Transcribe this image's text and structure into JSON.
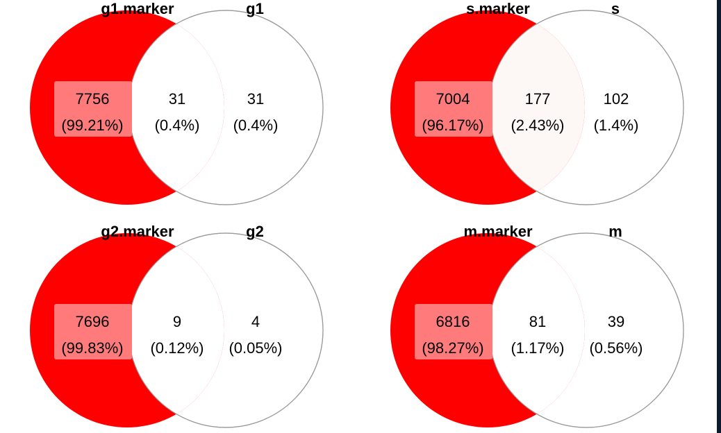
{
  "colors": {
    "left_fill": "#ff0000",
    "overlap_fill_light": "#fdf7f5",
    "overlap_fill_white": "#ffffff",
    "label_box": "#ff7b7b",
    "circle_stroke": "#9a9a9a",
    "text": "#000000",
    "edge_bar": "#0f1a2a"
  },
  "diagrams": [
    {
      "left_label": "g1.marker",
      "right_label": "g1",
      "left_only": {
        "count": "7756",
        "pct": "(99.21%)"
      },
      "overlap": {
        "count": "31",
        "pct": "(0.4%)"
      },
      "right_only": {
        "count": "31",
        "pct": "(0.4%)"
      }
    },
    {
      "left_label": "s.marker",
      "right_label": "s",
      "left_only": {
        "count": "7004",
        "pct": "(96.17%)"
      },
      "overlap": {
        "count": "177",
        "pct": "(2.43%)"
      },
      "right_only": {
        "count": "102",
        "pct": "(1.4%)"
      }
    },
    {
      "left_label": "g2.marker",
      "right_label": "g2",
      "left_only": {
        "count": "7696",
        "pct": "(99.83%)"
      },
      "overlap": {
        "count": "9",
        "pct": "(0.12%)"
      },
      "right_only": {
        "count": "4",
        "pct": "(0.05%)"
      }
    },
    {
      "left_label": "m.marker",
      "right_label": "m",
      "left_only": {
        "count": "6816",
        "pct": "(98.27%)"
      },
      "overlap": {
        "count": "81",
        "pct": "(1.17%)"
      },
      "right_only": {
        "count": "39",
        "pct": "(0.56%)"
      }
    }
  ]
}
